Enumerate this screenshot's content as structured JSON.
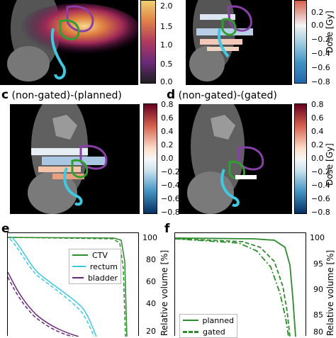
{
  "panels": {
    "c": {
      "letter": "c",
      "title": "(non-gated)-(planned)"
    },
    "d": {
      "letter": "d",
      "title": "(non-gated)-(gated)"
    },
    "e": {
      "letter": "e"
    },
    "f": {
      "letter": "f"
    }
  },
  "colorbar_top_left": {
    "ticks": [
      "2.0",
      "1.5",
      "1.0",
      "0.5",
      "0.0"
    ]
  },
  "colorbar_diff": {
    "label": "Dose [Gy]",
    "ticks": [
      "0.8",
      "0.6",
      "0.4",
      "0.2",
      "0.0",
      "−0.2",
      "−0.4",
      "−0.6",
      "−0.8"
    ]
  },
  "colorbar_top_right": {
    "label": "Dose [Gy]",
    "ticks": [
      "0.2",
      "0.0",
      "−0.2",
      "−0.4",
      "−0.6",
      "−0.8"
    ]
  },
  "dvh_e": {
    "ylabel": "Relative volume [%]",
    "yticks": [
      "100",
      "80",
      "60",
      "40",
      "20"
    ],
    "legend": [
      {
        "label": "CTV",
        "color": "#2e8b2e"
      },
      {
        "label": "rectum",
        "color": "#40c8e0"
      },
      {
        "label": "bladder",
        "color": "#6a2a7a"
      }
    ]
  },
  "dvh_f": {
    "ylabel": "Relative volume [%]",
    "yticks": [
      "100",
      "95",
      "90",
      "85",
      "80"
    ],
    "legend": [
      {
        "label": "planned",
        "color": "#2e8b2e",
        "style": "solid"
      },
      {
        "label": "gated",
        "color": "#2e8b2e",
        "style": "dashed"
      }
    ]
  },
  "colors": {
    "ctv": "#2e8b2e",
    "rectum": "#40c8e0",
    "bladder": "#6a2a7a"
  }
}
